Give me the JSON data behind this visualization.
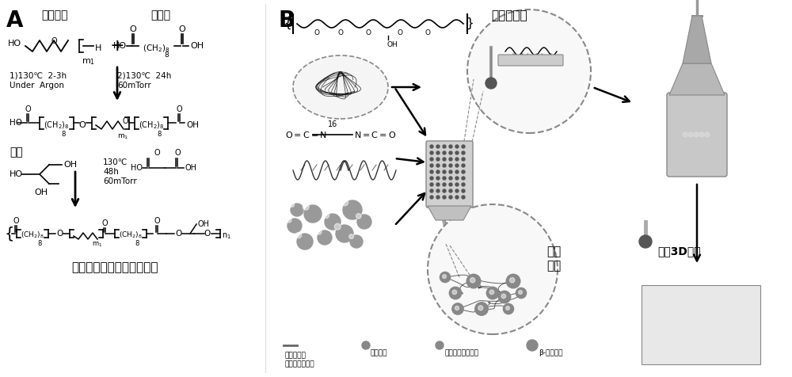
{
  "bg_color": "#ffffff",
  "label_A": "A",
  "label_B": "B",
  "text_PEG": "聚乙二醇",
  "text_SebAcid": "癸二酸",
  "text_glycerol": "甸油",
  "text_product": "聚乙二醇化聚癸二酸甸油酯",
  "text_cond1": "1)130℃  2-3h\nUnder  Argon",
  "text_cond2": "2)130℃  24h\n60mTorr",
  "text_cond3": "130℃\n48h\n60mTorr",
  "text_lowtemp": "低温自固化",
  "text_bridge": "桥接\n作用",
  "text_roomtemp": "室温3D打印",
  "text_legend1": "聚乙二醇化\n聚癸二酸甸油酯",
  "text_legend2": "翥基基团",
  "text_legend3": "六亚甲基异氰酸酯",
  "text_legend4": "β-磷酸三钙",
  "figsize": [
    10.0,
    4.76
  ],
  "dpi": 100
}
